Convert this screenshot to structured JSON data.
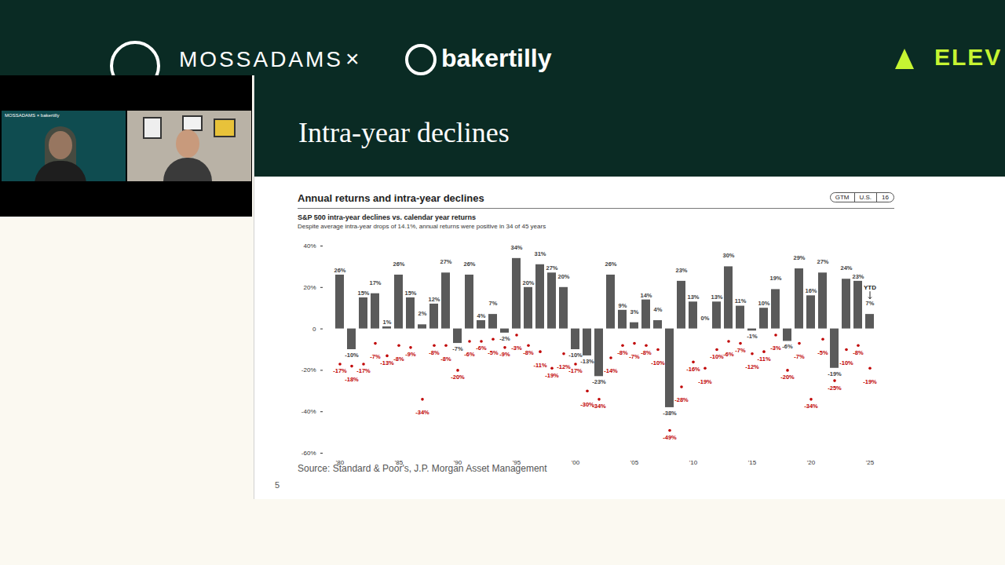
{
  "header": {
    "left_logo": "MOSSADAMS",
    "separator": "×",
    "right_logo": "bakertilly",
    "far_right_logo": "ELEV"
  },
  "video_panel": {
    "tile_brand": "MOSSADAMS × bakertilly"
  },
  "slide": {
    "title": "Intra-year declines",
    "page": 5
  },
  "chart_data": {
    "type": "bar",
    "title": "Annual returns and intra-year declines",
    "badges": [
      "GTM",
      "U.S.",
      "16"
    ],
    "subtitle": "S&P 500 intra-year declines vs. calendar year returns",
    "caption": "Despite average intra-year drops of 14.1%, annual returns were positive in 34 of 45 years",
    "source": "Source: Standard & Poor's, J.P. Morgan Asset Management",
    "categories": [
      "'80",
      null,
      null,
      null,
      null,
      "'85",
      null,
      null,
      null,
      null,
      "'90",
      null,
      null,
      null,
      null,
      "'95",
      null,
      null,
      null,
      null,
      "'00",
      null,
      null,
      null,
      null,
      "'05",
      null,
      null,
      null,
      null,
      "'10",
      null,
      null,
      null,
      null,
      "'15",
      null,
      null,
      null,
      null,
      "'20",
      null,
      null,
      null,
      null,
      "'25"
    ],
    "series": [
      {
        "name": "calendar year returns",
        "type": "bar",
        "color": "#5a5a5a",
        "values": [
          26,
          -10,
          15,
          17,
          1,
          26,
          15,
          2,
          12,
          27,
          -7,
          26,
          4,
          7,
          -2,
          34,
          20,
          31,
          27,
          20,
          -10,
          -13,
          -23,
          26,
          9,
          3,
          14,
          4,
          -38,
          23,
          13,
          0,
          13,
          30,
          11,
          -1,
          10,
          19,
          -6,
          29,
          16,
          27,
          -19,
          24,
          23,
          7
        ],
        "value_labels": [
          "26%",
          "-10%",
          "15%",
          "17%",
          "1%",
          "26%",
          "15%",
          "2%",
          "12%",
          "27%",
          "-7%",
          "26%",
          "4%",
          "7%",
          "-2%",
          "34%",
          "20%",
          "31%",
          "27%",
          "20%",
          "-10%",
          "-13%",
          "-23%",
          "26%",
          "9%",
          "3%",
          "14%",
          "4%",
          "-38%",
          "23%",
          "13%",
          "0%",
          "13%",
          "30%",
          "11%",
          "-1%",
          "10%",
          "19%",
          "-6%",
          "29%",
          "16%",
          "27%",
          "-19%",
          "24%",
          "23%",
          "7%"
        ]
      },
      {
        "name": "intra-year declines",
        "type": "scatter",
        "marker": "circle",
        "color": "#c00000",
        "values": [
          -17,
          -18,
          -17,
          -7,
          -13,
          -8,
          -9,
          -34,
          -8,
          -8,
          -20,
          -6,
          -6,
          -5,
          -9,
          -3,
          -8,
          -11,
          -19,
          -12,
          -17,
          -30,
          -34,
          -14,
          -8,
          -7,
          -8,
          -10,
          -49,
          -28,
          -16,
          -19,
          -10,
          -6,
          -7,
          -12,
          -11,
          -3,
          -20,
          -7,
          -34,
          -5,
          -25,
          -10,
          -8,
          -19
        ],
        "value_labels": [
          "-17%",
          "-18%",
          "-17%",
          "-7%",
          "-13%",
          "-8%",
          "-9%",
          "-34%",
          "-8%",
          "-8%",
          "-20%",
          "-6%",
          "-6%",
          "-5%",
          "-9%",
          "-3%",
          "-8%",
          "-11%",
          "-19%",
          "-12%",
          "-17%",
          "-30%",
          "-34%",
          "-14%",
          "-8%",
          "-7%",
          "-8%",
          "-10%",
          "-49%",
          "-28%",
          "-16%",
          "-19%",
          "-10%",
          "-6%",
          "-7%",
          "-12%",
          "-11%",
          "-3%",
          "-20%",
          "-7%",
          "-34%",
          "-5%",
          "-25%",
          "-10%",
          "-8%",
          "-19%"
        ]
      }
    ],
    "ylim": [
      -60,
      40
    ],
    "yticks": [
      {
        "value": -60,
        "label": "-60%"
      },
      {
        "value": -40,
        "label": "-40%"
      },
      {
        "value": -20,
        "label": "-20%"
      },
      {
        "value": 0,
        "label": "0"
      },
      {
        "value": 20,
        "label": "20%"
      },
      {
        "value": 40,
        "label": "40%"
      }
    ],
    "grid": false,
    "data_labels": true,
    "annotations": [
      {
        "text": "YTD",
        "category": "'25"
      }
    ]
  }
}
